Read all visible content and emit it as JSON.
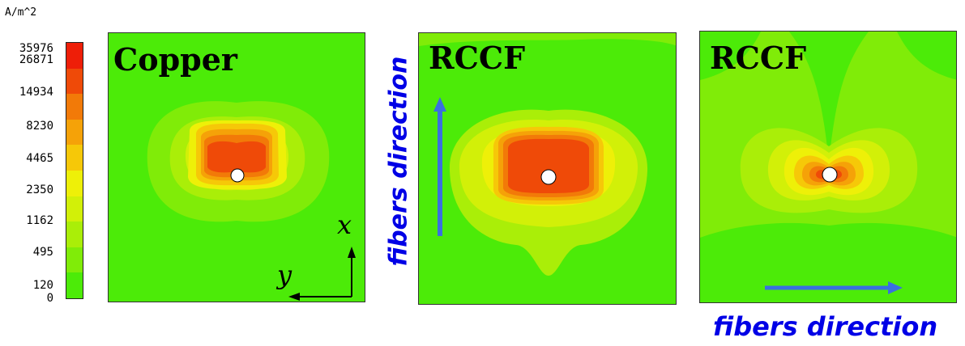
{
  "legend": {
    "unit": "A/m^2",
    "labels": [
      "35976",
      "26871",
      "14934",
      "8230",
      "4465",
      "2350",
      "1162",
      "495",
      "120",
      "0"
    ],
    "colors_top_to_bottom": [
      "#ee1e08",
      "#ef4a08",
      "#f27a08",
      "#f5a208",
      "#f6c808",
      "#eef008",
      "#d2f008",
      "#aaee08",
      "#80ec08",
      "#4ceb08"
    ]
  },
  "panels": [
    {
      "title": "Copper"
    },
    {
      "title": "RCCF"
    },
    {
      "title": "RCCF"
    }
  ],
  "annotations": {
    "fibers_direction_vertical": "fibers direction",
    "fibers_direction_horizontal": "fibers direction",
    "axis_x": "x",
    "axis_y": "y"
  },
  "colors": {
    "arrow": "#3a6fe0",
    "background_green": "#4ceb08"
  }
}
